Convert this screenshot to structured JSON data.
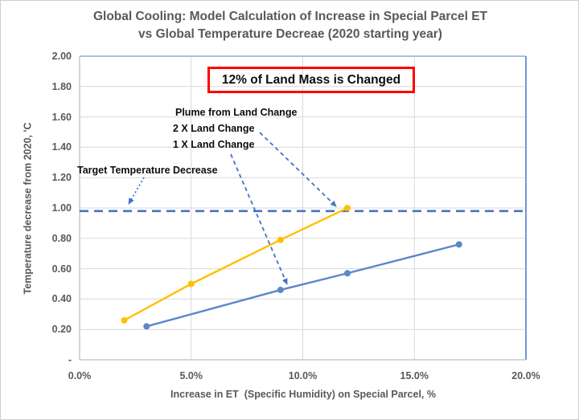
{
  "title": {
    "line1": "Global Cooling: Model Calculation of Increase in Special Parcel ET",
    "line2": "vs Global Temperature Decreae (2020 starting year)"
  },
  "chart_data": {
    "type": "line",
    "title": "Global Cooling: Model Calculation of Increase in Special Parcel ET vs Global Temperature Decreae (2020 starting year)",
    "xlabel": "Increase in ET  (Specific Humidity) on Special Parcel, %",
    "ylabel": "Temperature decrease from 2020, 'C",
    "xlim": [
      0,
      20
    ],
    "ylim": [
      0,
      2
    ],
    "grid": true,
    "x_tick_values": [
      0,
      5,
      10,
      15,
      20
    ],
    "x_tick_labels": [
      "0.0%",
      "5.0%",
      "10.0%",
      "15.0%",
      "20.0%"
    ],
    "y_tick_values": [
      2.0,
      1.8,
      1.6,
      1.4,
      1.2,
      1.0,
      0.8,
      0.6,
      0.4,
      0.2,
      0
    ],
    "y_tick_labels": [
      "2.00",
      "1.80",
      "1.60",
      "1.40",
      "1.20",
      "1.00",
      "0.80",
      "0.60",
      "0.40",
      "0.20",
      "-"
    ],
    "series": [
      {
        "name": "2 X Land Change",
        "color": "#FFC000",
        "points": [
          {
            "x": 2,
            "y": 0.26
          },
          {
            "x": 5,
            "y": 0.5
          },
          {
            "x": 9,
            "y": 0.79
          },
          {
            "x": 12,
            "y": 1.0
          }
        ]
      },
      {
        "name": "1 X Land Change",
        "color": "#5B87CB",
        "points": [
          {
            "x": 3,
            "y": 0.22
          },
          {
            "x": 9,
            "y": 0.46
          },
          {
            "x": 12,
            "y": 0.57
          },
          {
            "x": 17,
            "y": 0.76
          }
        ]
      }
    ],
    "target_line": {
      "label": "Target Temperature Decrease",
      "y": 0.98,
      "color": "#4472C4",
      "style": "dashed"
    }
  },
  "annotations": {
    "land_mass_box": {
      "text": "12% of Land Mass is Changed",
      "border_color": "#FF0000"
    },
    "plume_header": "Plume from Land Change",
    "label_2x": "2 X Land Change",
    "label_1x": "1 X Land Change",
    "target_label": "Target Temperature Decrease",
    "arrow_color": "#4472C4"
  },
  "colors": {
    "title_text": "#595959",
    "axis_text": "#595959",
    "annotation_text": "#0d0d0d",
    "gridline": "#D9D9D9",
    "axis_line": "#BFBFBF",
    "plot_border_top": "#A9C0E8",
    "plot_border_right": "#7396D5",
    "series_gold": "#FFC000",
    "series_blue": "#5B87CB",
    "target_dash_blue": "#4472C4",
    "red_box_border": "#FF0000"
  }
}
